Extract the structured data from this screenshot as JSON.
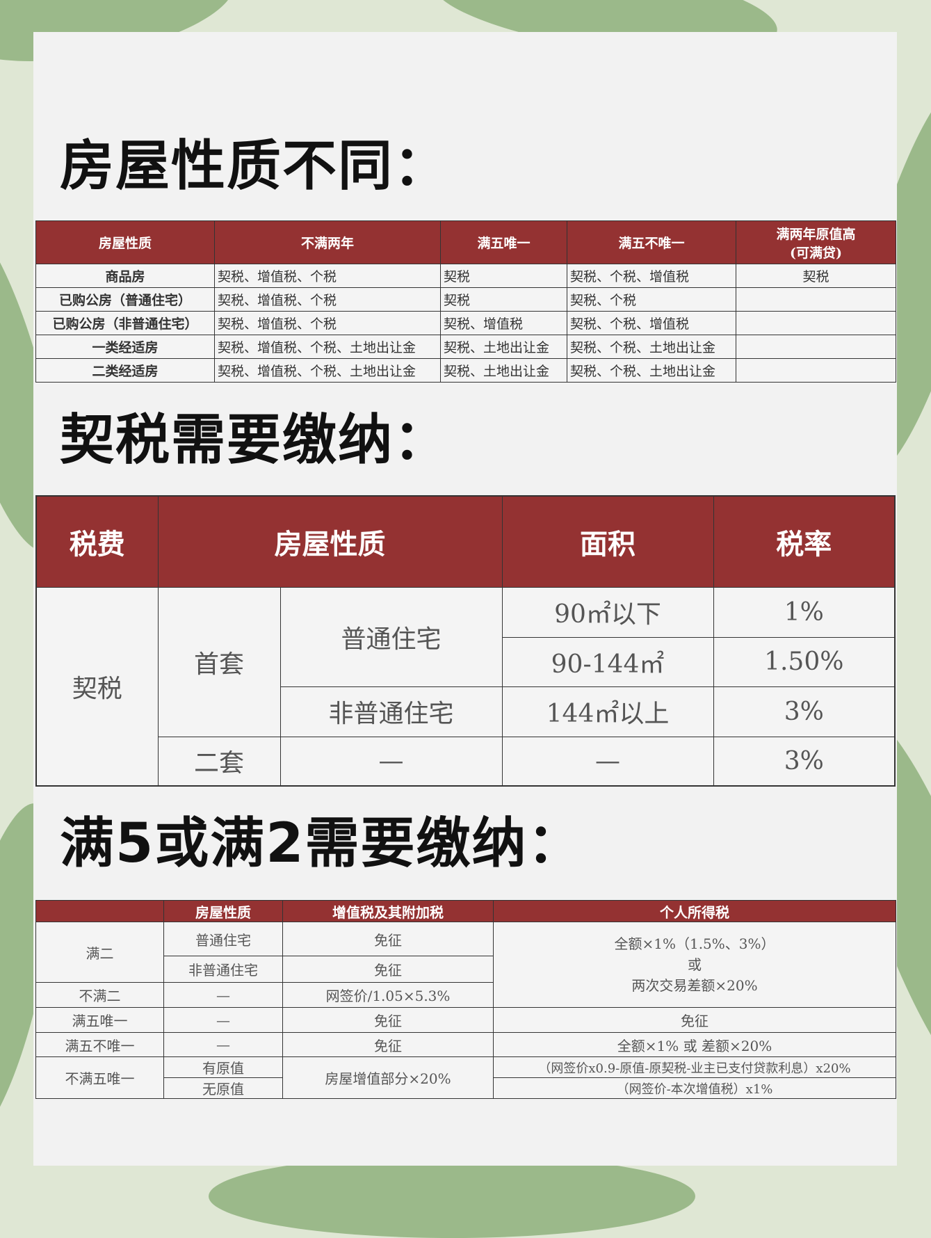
{
  "colors": {
    "header": "#943232",
    "card": "#f2f2f2",
    "leaf": "#9bb98a"
  },
  "section1": {
    "title": "房屋性质不同：",
    "headers": [
      "房屋性质",
      "不满两年",
      "满五唯一",
      "满五不唯一",
      "满两年原值高",
      "(可满贷)"
    ],
    "rows": [
      [
        "商品房",
        "契税、增值税、个税",
        "契税",
        "契税、个税、增值税",
        "契税"
      ],
      [
        "已购公房（普通住宅）",
        "契税、增值税、个税",
        "契税",
        "契税、个税",
        ""
      ],
      [
        "已购公房（非普通住宅）",
        "契税、增值税、个税",
        "契税、增值税",
        "契税、个税、增值税",
        ""
      ],
      [
        "一类经适房",
        "契税、增值税、个税、土地出让金",
        "契税、土地出让金",
        "契税、个税、土地出让金",
        ""
      ],
      [
        "二类经适房",
        "契税、增值税、个税、土地出让金",
        "契税、土地出让金",
        "契税、个税、土地出让金",
        ""
      ]
    ]
  },
  "section2": {
    "title": "契税需要缴纳：",
    "headers": [
      "税费",
      "房屋性质",
      "面积",
      "税率"
    ],
    "tax": "契税",
    "first": "首套",
    "second": "二套",
    "ordinary": "普通住宅",
    "nonordinary": "非普通住宅",
    "areas": [
      "90㎡以下",
      "90-144㎡",
      "144㎡以上",
      "—"
    ],
    "rates": [
      "1%",
      "1.50%",
      "3%",
      "3%"
    ],
    "dash": "—"
  },
  "section3": {
    "title": "满5或满2需要缴纳：",
    "headers": [
      "",
      "房屋性质",
      "增值税及其附加税",
      "个人所得税"
    ],
    "man2": "满二",
    "ordinary": "普通住宅",
    "nonordinary": "非普通住宅",
    "exempt": "免征",
    "buman2": "不满二",
    "dash": "—",
    "vat_buman2": "网签价/1.05×5.3%",
    "pit_man2": [
      "全额×1%（1.5%、3%）",
      "或",
      "两次交易差额×20%"
    ],
    "man5only": "满五唯一",
    "man5notonly": "满五不唯一",
    "pit_man5notonly": "全额×1% 或 差额×20%",
    "buman5only": "不满五唯一",
    "has_orig": "有原值",
    "no_orig": "无原值",
    "vat_buman5": "房屋增值部分×20%",
    "pit_has_orig": "（网签价x0.9-原值-原契税-业主已支付贷款利息）x20%",
    "pit_no_orig": "（网签价-本次增值税）x1%"
  }
}
